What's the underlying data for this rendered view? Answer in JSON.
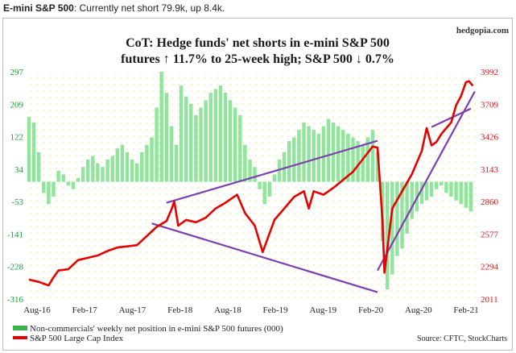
{
  "caption": {
    "label": "E-mini S&P 500",
    "text": ": Currently net short 79.9k, up 8.4k."
  },
  "brand": "hedgopia.com",
  "source": "Source: CFTC, StockCharts",
  "colors": {
    "cot_bar": "#8fe59b",
    "spx_line": "#e60000",
    "trendline": "#7d3fb0",
    "left_axis": "#1e9c3a",
    "right_axis": "#e11414",
    "grid_dot": "#dede70"
  },
  "chart_data": {
    "type": "bar+line",
    "title": "CoT: Hedge funds' net shorts in e-mini S&P 500 futures ↑ 11.7% to 25-week high; S&P 500 ↓ 0.7%",
    "title_lines": [
      "CoT: Hedge funds' net shorts in e-mini S&P 500",
      "futures ↑ 11.7% to 25-week high; S&P 500 ↓ 0.7%"
    ],
    "x_ticks": [
      "Aug-16",
      "Feb-17",
      "Aug-17",
      "Feb-18",
      "Aug-18",
      "Feb-19",
      "Aug-19",
      "Feb-20",
      "Aug-20",
      "Feb-21"
    ],
    "x_range": [
      2016.6,
      2021.15
    ],
    "y_left": {
      "ticks": [
        "297",
        "209",
        "122",
        "34",
        "-53",
        "-141",
        "-228",
        "-316"
      ],
      "ylim": [
        -316,
        297
      ]
    },
    "y_right": {
      "ticks": [
        "3992",
        "3709",
        "3426",
        "3143",
        "2860",
        "2577",
        "2294",
        "2011"
      ],
      "ylim": [
        2011,
        3992
      ]
    },
    "grid": true,
    "legend_position": "bottom-left",
    "series": [
      {
        "name": "Non-commercials' weekly net position in e-mini S&P 500 futures (000)",
        "type": "bar",
        "axis": "left",
        "x": [
          2016.6,
          2016.65,
          2016.7,
          2016.75,
          2016.8,
          2016.85,
          2016.9,
          2016.95,
          2017.0,
          2017.05,
          2017.1,
          2017.15,
          2017.2,
          2017.25,
          2017.3,
          2017.35,
          2017.4,
          2017.45,
          2017.5,
          2017.55,
          2017.6,
          2017.65,
          2017.7,
          2017.75,
          2017.8,
          2017.85,
          2017.9,
          2017.95,
          2018.0,
          2018.05,
          2018.1,
          2018.15,
          2018.2,
          2018.25,
          2018.3,
          2018.35,
          2018.4,
          2018.45,
          2018.5,
          2018.55,
          2018.6,
          2018.65,
          2018.7,
          2018.75,
          2018.8,
          2018.85,
          2018.9,
          2018.95,
          2019.0,
          2019.05,
          2019.1,
          2019.15,
          2019.2,
          2019.25,
          2019.3,
          2019.35,
          2019.4,
          2019.45,
          2019.5,
          2019.55,
          2019.6,
          2019.65,
          2019.7,
          2019.75,
          2019.8,
          2019.85,
          2019.9,
          2019.95,
          2020.0,
          2020.05,
          2020.1,
          2020.15,
          2020.2,
          2020.25,
          2020.3,
          2020.35,
          2020.4,
          2020.45,
          2020.5,
          2020.55,
          2020.6,
          2020.65,
          2020.7,
          2020.75,
          2020.8,
          2020.85,
          2020.9,
          2020.95,
          2021.0,
          2021.05,
          2021.1
        ],
        "values": [
          175,
          160,
          80,
          -30,
          -60,
          -40,
          30,
          20,
          -10,
          -20,
          10,
          40,
          60,
          70,
          50,
          40,
          60,
          70,
          90,
          100,
          80,
          60,
          50,
          80,
          100,
          120,
          200,
          297,
          240,
          150,
          100,
          260,
          230,
          210,
          180,
          200,
          220,
          240,
          250,
          260,
          240,
          220,
          200,
          180,
          100,
          60,
          40,
          -20,
          -60,
          -40,
          20,
          60,
          80,
          110,
          120,
          140,
          160,
          150,
          140,
          130,
          150,
          170,
          160,
          150,
          140,
          130,
          120,
          110,
          100,
          120,
          140,
          80,
          -160,
          -290,
          -250,
          -200,
          -180,
          -140,
          -100,
          -80,
          -60,
          -50,
          -40,
          -20,
          -10,
          -30,
          -40,
          -50,
          -60,
          -70,
          -80
        ]
      },
      {
        "name": "S&P 500 Large Cap Index",
        "type": "line",
        "axis": "right",
        "x": [
          2016.6,
          2016.7,
          2016.8,
          2016.85,
          2016.9,
          2017.0,
          2017.1,
          2017.2,
          2017.3,
          2017.4,
          2017.5,
          2017.6,
          2017.7,
          2017.8,
          2017.9,
          2018.0,
          2018.05,
          2018.08,
          2018.12,
          2018.2,
          2018.3,
          2018.4,
          2018.5,
          2018.6,
          2018.72,
          2018.8,
          2018.9,
          2018.98,
          2019.1,
          2019.2,
          2019.3,
          2019.4,
          2019.45,
          2019.5,
          2019.6,
          2019.7,
          2019.8,
          2019.9,
          2020.0,
          2020.1,
          2020.15,
          2020.2,
          2020.22,
          2020.3,
          2020.4,
          2020.5,
          2020.6,
          2020.65,
          2020.7,
          2020.75,
          2020.8,
          2020.9,
          2020.95,
          2021.0,
          2021.05,
          2021.08,
          2021.12
        ],
        "values": [
          2180,
          2160,
          2130,
          2200,
          2260,
          2270,
          2350,
          2370,
          2390,
          2430,
          2460,
          2470,
          2480,
          2560,
          2640,
          2690,
          2790,
          2860,
          2650,
          2700,
          2680,
          2720,
          2800,
          2850,
          2920,
          2760,
          2650,
          2420,
          2700,
          2800,
          2900,
          2950,
          2800,
          2950,
          2920,
          2980,
          3050,
          3120,
          3230,
          3340,
          3330,
          2700,
          2240,
          2800,
          2950,
          3100,
          3300,
          3500,
          3350,
          3380,
          3450,
          3550,
          3700,
          3780,
          3900,
          3910,
          3870
        ]
      }
    ],
    "trendlines": [
      {
        "from": [
          2018.0,
          2850
        ],
        "to": [
          2020.15,
          3390
        ]
      },
      {
        "from": [
          2017.85,
          2670
        ],
        "to": [
          2020.15,
          2070
        ]
      },
      {
        "from": [
          2020.15,
          2260
        ],
        "to": [
          2021.14,
          3820
        ]
      },
      {
        "from": [
          2020.7,
          3510
        ],
        "to": [
          2021.1,
          3670
        ]
      }
    ]
  }
}
